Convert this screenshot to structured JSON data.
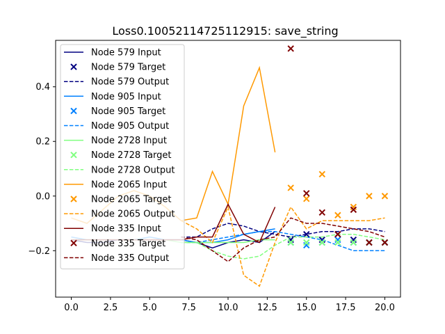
{
  "chart_data": {
    "type": "line",
    "title": "Loss0.10052114725112915: save_string",
    "xlabel": "",
    "ylabel": "",
    "xlim": [
      -1.0,
      21.0
    ],
    "ylim": [
      -0.37,
      0.57
    ],
    "xticks": [
      0.0,
      2.5,
      5.0,
      7.5,
      10.0,
      12.5,
      15.0,
      17.5,
      20.0
    ],
    "xtick_labels": [
      "0.0",
      "2.5",
      "5.0",
      "7.5",
      "10.0",
      "12.5",
      "15.0",
      "17.5",
      "20.0"
    ],
    "yticks": [
      -0.2,
      0.0,
      0.2,
      0.4
    ],
    "ytick_labels": [
      "−0.2",
      "0.0",
      "0.2",
      "0.4"
    ],
    "grid": false,
    "legend_position": "upper-left",
    "series": [
      {
        "name": "Node 579 Input",
        "kind": "input",
        "color": "#000080",
        "x": [
          0,
          1,
          2,
          3,
          4,
          5,
          6,
          7,
          8,
          9,
          10,
          11,
          12,
          13
        ],
        "y": [
          -0.16,
          -0.17,
          -0.17,
          -0.16,
          -0.16,
          -0.16,
          -0.16,
          -0.16,
          -0.17,
          -0.19,
          -0.17,
          -0.16,
          -0.17,
          -0.13
        ]
      },
      {
        "name": "Node 579 Target",
        "kind": "target",
        "color": "#000080",
        "x": [
          14,
          15,
          16,
          17,
          18,
          19,
          20
        ],
        "y": [
          -0.16,
          -0.14,
          -0.16,
          -0.14,
          -0.16,
          -0.17,
          -0.17
        ]
      },
      {
        "name": "Node 579 Output",
        "kind": "output",
        "color": "#000080",
        "x": [
          7,
          8,
          9,
          10,
          11,
          12,
          13,
          14,
          15,
          16,
          17,
          18,
          19,
          20
        ],
        "y": [
          -0.15,
          -0.15,
          -0.12,
          -0.1,
          -0.11,
          -0.13,
          -0.14,
          -0.15,
          -0.14,
          -0.13,
          -0.13,
          -0.12,
          -0.12,
          -0.13
        ]
      },
      {
        "name": "Node 905 Input",
        "kind": "input",
        "color": "#0080ff",
        "x": [
          0,
          1,
          2,
          3,
          4,
          5,
          6,
          7,
          8,
          9,
          10,
          11,
          12,
          13
        ],
        "y": [
          -0.15,
          -0.16,
          -0.16,
          -0.16,
          -0.16,
          -0.15,
          -0.16,
          -0.16,
          -0.17,
          -0.17,
          -0.16,
          -0.14,
          -0.13,
          -0.12
        ]
      },
      {
        "name": "Node 905 Target",
        "kind": "target",
        "color": "#0080ff",
        "x": [
          14,
          15,
          16,
          17,
          18,
          19,
          20
        ],
        "y": [
          -0.17,
          -0.18,
          -0.17,
          -0.16,
          -0.17,
          -0.17,
          -0.17
        ]
      },
      {
        "name": "Node 905 Output",
        "kind": "output",
        "color": "#0080ff",
        "x": [
          7,
          8,
          9,
          10,
          11,
          12,
          13,
          14,
          15,
          16,
          17,
          18,
          19,
          20
        ],
        "y": [
          -0.17,
          -0.17,
          -0.16,
          -0.15,
          -0.14,
          -0.13,
          -0.13,
          -0.14,
          -0.15,
          -0.16,
          -0.18,
          -0.2,
          -0.2,
          -0.2
        ]
      },
      {
        "name": "Node 2728 Input",
        "kind": "input",
        "color": "#80ff80",
        "x": [
          0,
          1,
          2,
          3,
          4,
          5,
          6,
          7,
          8,
          9,
          10,
          11,
          12,
          13
        ],
        "y": [
          -0.16,
          -0.16,
          -0.16,
          -0.16,
          -0.16,
          -0.16,
          -0.16,
          -0.17,
          -0.17,
          -0.17,
          -0.17,
          -0.17,
          -0.16,
          -0.16
        ]
      },
      {
        "name": "Node 2728 Target",
        "kind": "target",
        "color": "#80ff80",
        "x": [
          14,
          15,
          16,
          17,
          18,
          19,
          20
        ],
        "y": [
          -0.17,
          -0.17,
          -0.17,
          -0.17,
          -0.17,
          -0.17,
          -0.17
        ]
      },
      {
        "name": "Node 2728 Output",
        "kind": "output",
        "color": "#80ff80",
        "x": [
          7,
          8,
          9,
          10,
          11,
          12,
          13,
          14,
          15,
          16,
          17,
          18,
          19,
          20
        ],
        "y": [
          -0.17,
          -0.17,
          -0.2,
          -0.22,
          -0.23,
          -0.22,
          -0.18,
          -0.15,
          -0.15,
          -0.15,
          -0.14,
          -0.14,
          -0.15,
          -0.16
        ]
      },
      {
        "name": "Node 2065 Input",
        "kind": "input",
        "color": "#ff9900",
        "x": [
          0,
          1,
          2,
          3,
          4,
          5,
          6,
          7,
          8,
          9,
          10,
          11,
          12,
          13
        ],
        "y": [
          -0.08,
          -0.1,
          -0.05,
          0.0,
          0.02,
          0.0,
          -0.04,
          -0.09,
          -0.08,
          0.09,
          -0.03,
          0.33,
          0.47,
          0.16
        ]
      },
      {
        "name": "Node 2065 Target",
        "kind": "target",
        "color": "#ff9900",
        "x": [
          14,
          15,
          16,
          17,
          18,
          19,
          20
        ],
        "y": [
          0.03,
          -0.01,
          0.08,
          -0.07,
          -0.04,
          0.0,
          0.0
        ]
      },
      {
        "name": "Node 2065 Output",
        "kind": "output",
        "color": "#ff9900",
        "x": [
          7,
          8,
          9,
          10,
          11,
          12,
          13,
          14,
          15,
          16,
          17,
          18,
          19,
          20
        ],
        "y": [
          -0.09,
          -0.12,
          -0.17,
          -0.04,
          -0.29,
          -0.33,
          -0.17,
          -0.04,
          -0.12,
          -0.09,
          -0.09,
          -0.09,
          -0.09,
          -0.08
        ]
      },
      {
        "name": "Node 335 Input",
        "kind": "input",
        "color": "#800000",
        "x": [
          0,
          1,
          2,
          3,
          4,
          5,
          6,
          7,
          8,
          9,
          10,
          11,
          12,
          13
        ],
        "y": [
          -0.16,
          -0.16,
          -0.16,
          -0.16,
          -0.16,
          -0.16,
          -0.16,
          -0.16,
          -0.15,
          -0.15,
          -0.03,
          -0.14,
          -0.17,
          -0.04
        ]
      },
      {
        "name": "Node 335 Target",
        "kind": "target",
        "color": "#800000",
        "x": [
          14,
          15,
          16,
          17,
          18,
          19,
          20
        ],
        "y": [
          0.54,
          0.01,
          -0.06,
          -0.14,
          -0.05,
          -0.17,
          -0.17
        ]
      },
      {
        "name": "Node 335 Output",
        "kind": "output",
        "color": "#800000",
        "x": [
          7,
          8,
          9,
          10,
          11,
          12,
          13,
          14,
          15,
          16,
          17,
          18,
          19,
          20
        ],
        "y": [
          -0.15,
          -0.16,
          -0.2,
          -0.24,
          -0.19,
          -0.16,
          -0.15,
          -0.08,
          -0.1,
          -0.1,
          -0.11,
          -0.12,
          -0.13,
          -0.15
        ]
      }
    ]
  }
}
